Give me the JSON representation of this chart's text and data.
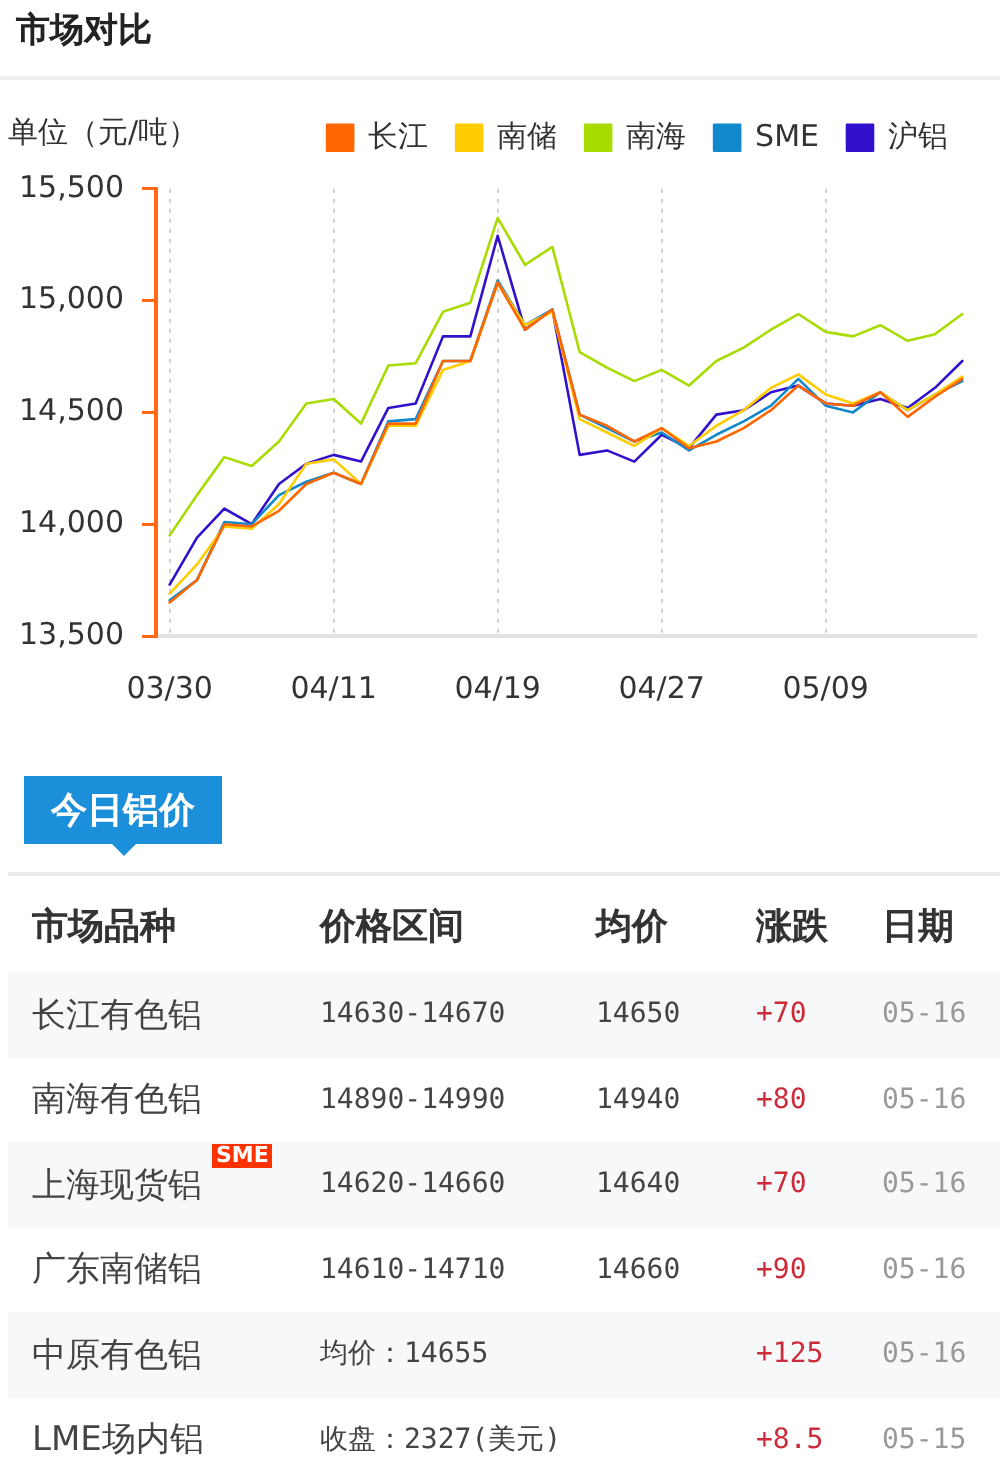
{
  "chart_data": [
    {
      "type": "line",
      "title": "市场对比",
      "ylabel": "单位（元/吨）",
      "categories": [
        "03/30",
        null,
        null,
        null,
        null,
        null,
        "04/11",
        null,
        null,
        null,
        null,
        null,
        "04/19",
        null,
        null,
        null,
        null,
        null,
        "04/27",
        null,
        null,
        null,
        null,
        null,
        "05/09",
        null,
        null,
        null,
        null,
        null
      ],
      "series": [
        {
          "name": "长江",
          "color": "#ff6600",
          "values": [
            13650,
            13750,
            14000,
            13990,
            14060,
            14180,
            14230,
            14180,
            14450,
            14450,
            14730,
            14730,
            15080,
            14870,
            14960,
            14490,
            14440,
            14370,
            14430,
            14340,
            14370,
            14430,
            14510,
            14620,
            14540,
            14530,
            14590,
            14480,
            14570,
            14650
          ]
        },
        {
          "name": "南储",
          "color": "#ffcc00",
          "values": [
            13690,
            13820,
            13990,
            13980,
            14090,
            14270,
            14290,
            14180,
            14440,
            14440,
            14690,
            14730,
            15080,
            14890,
            14950,
            14470,
            14410,
            14350,
            14430,
            14350,
            14440,
            14510,
            14610,
            14670,
            14580,
            14540,
            14590,
            14510,
            14580,
            14660
          ]
        },
        {
          "name": "南海",
          "color": "#a8dc00",
          "values": [
            13950,
            14130,
            14300,
            14260,
            14370,
            14540,
            14560,
            14450,
            14710,
            14720,
            14950,
            14990,
            15370,
            15160,
            15240,
            14770,
            14700,
            14640,
            14690,
            14620,
            14730,
            14790,
            14870,
            14940,
            14860,
            14840,
            14890,
            14820,
            14850,
            14940
          ]
        },
        {
          "name": "SME",
          "color": "#1188cc",
          "values": [
            13660,
            13750,
            14010,
            14000,
            14130,
            14190,
            14230,
            14180,
            14460,
            14470,
            14730,
            14730,
            15090,
            14890,
            14960,
            14490,
            14430,
            14370,
            14410,
            14330,
            14400,
            14460,
            14530,
            14650,
            14530,
            14500,
            14590,
            14510,
            14580,
            14640
          ]
        },
        {
          "name": "沪铝",
          "color": "#3311cc",
          "values": [
            13730,
            13940,
            14070,
            14000,
            14180,
            14270,
            14310,
            14280,
            14520,
            14540,
            14840,
            14840,
            15290,
            14870,
            14960,
            14310,
            14330,
            14280,
            14400,
            14340,
            14490,
            14510,
            14590,
            14620,
            14540,
            14530,
            14560,
            14520,
            14610,
            14730
          ]
        }
      ],
      "ylim": [
        13500,
        15500
      ],
      "yticks": [
        {
          "value": 13500,
          "label": "13,500"
        },
        {
          "value": 14000,
          "label": "14,000"
        },
        {
          "value": 14500,
          "label": "14,500"
        },
        {
          "value": 15000,
          "label": "15,000"
        },
        {
          "value": 15500,
          "label": "15,500"
        }
      ],
      "grid": "x",
      "legend": "top right"
    },
    {
      "type": "other",
      "title": "今日铝价",
      "categories": [
        "市场品种",
        "价格区间",
        "均价",
        "涨跌",
        "日期"
      ],
      "cell_labels": [
        [
          "长江有色铝",
          "14630-14670",
          "14650",
          "+70",
          "05-16"
        ],
        [
          "南海有色铝",
          "14890-14990",
          "14940",
          "+80",
          "05-16"
        ],
        [
          "上海现货铝",
          "14620-14660",
          "14640",
          "+70",
          "05-16"
        ],
        [
          "广东南储铝",
          "14610-14710",
          "14660",
          "+90",
          "05-16"
        ],
        [
          "中原有色铝",
          "均价：14655",
          null,
          "+125",
          "05-16"
        ],
        [
          "LME场内铝",
          "收盘：2327(美元)",
          null,
          "+8.5",
          "05-15"
        ]
      ],
      "annotations": [
        "SME"
      ]
    }
  ]
}
